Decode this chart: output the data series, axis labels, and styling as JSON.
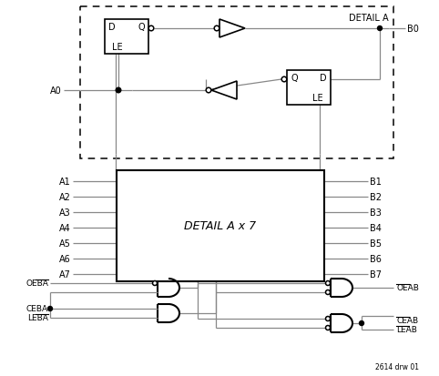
{
  "fig_note": "2614 drw 01",
  "bg_color": "#ffffff",
  "line_color": "#888888",
  "text_color": "#000000",
  "detail_a_label": "DETAIL A",
  "detail_a_x7_label": "DETAIL A x 7",
  "A_labels": [
    "A1",
    "A2",
    "A3",
    "A4",
    "A5",
    "A6",
    "A7"
  ],
  "B_labels": [
    "B1",
    "B2",
    "B3",
    "B4",
    "B5",
    "B6",
    "B7"
  ],
  "left_gate_labels": [
    "OEBA",
    "CEBA",
    "LEBA"
  ],
  "right_gate_labels": [
    "OEAB",
    "CEAB",
    "LEAB"
  ],
  "overline_labels_left": [
    true,
    false,
    false
  ],
  "overline_labels_right": [
    true,
    true,
    true
  ]
}
